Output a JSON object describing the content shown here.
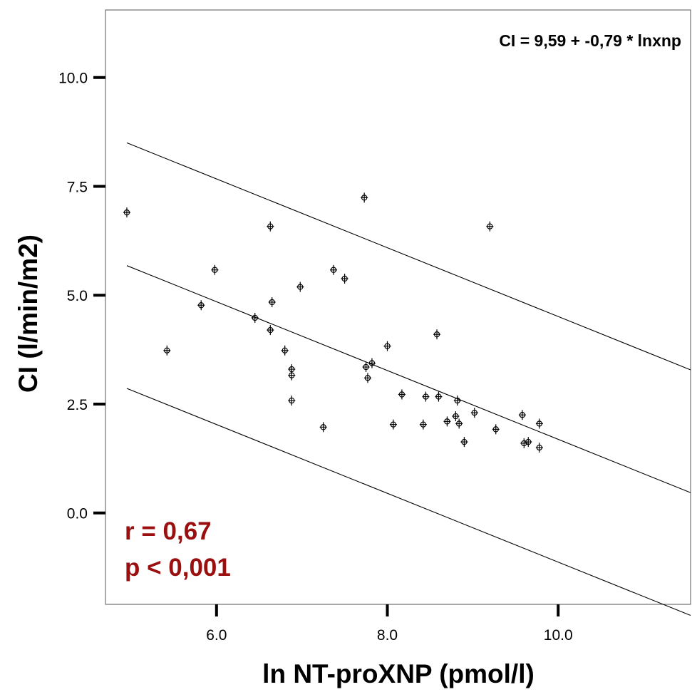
{
  "chart_data": {
    "type": "scatter",
    "title": "",
    "xlabel": "ln NT-proXNP (pmol/l)",
    "ylabel": "CI (l/min/m2)",
    "xlim": [
      4.7,
      11.55
    ],
    "ylim": [
      -2.1,
      11.55
    ],
    "x_ticks": [
      6.0,
      8.0,
      10.0
    ],
    "x_tick_labels": [
      "6.0",
      "8.0",
      "10.0"
    ],
    "y_ticks": [
      0.0,
      2.5,
      5.0,
      7.5,
      10.0
    ],
    "y_tick_labels": [
      "0.0",
      "2.5",
      "5.0",
      "7.5",
      "10.0"
    ],
    "grid": false,
    "annotations": {
      "equation": "CI = 9,59 + -0,79 * lnxnp",
      "r": "r = 0,67",
      "p": "p < 0,001"
    },
    "fit_line": {
      "intercept": 9.59,
      "slope": -0.79,
      "x_range": [
        4.95,
        11.55
      ]
    },
    "prediction_band": {
      "offset": 2.82,
      "x_range": [
        4.95,
        11.55
      ]
    },
    "points": [
      {
        "x": 4.95,
        "y": 6.9
      },
      {
        "x": 5.42,
        "y": 3.73
      },
      {
        "x": 5.82,
        "y": 4.77
      },
      {
        "x": 5.98,
        "y": 5.58
      },
      {
        "x": 6.45,
        "y": 4.48
      },
      {
        "x": 6.63,
        "y": 6.58
      },
      {
        "x": 6.63,
        "y": 4.2
      },
      {
        "x": 6.65,
        "y": 4.84
      },
      {
        "x": 6.8,
        "y": 3.73
      },
      {
        "x": 6.88,
        "y": 3.3
      },
      {
        "x": 6.88,
        "y": 3.16
      },
      {
        "x": 6.88,
        "y": 2.58
      },
      {
        "x": 6.98,
        "y": 5.19
      },
      {
        "x": 7.25,
        "y": 1.97
      },
      {
        "x": 7.37,
        "y": 5.58
      },
      {
        "x": 7.5,
        "y": 5.38
      },
      {
        "x": 7.73,
        "y": 7.24
      },
      {
        "x": 7.75,
        "y": 3.35
      },
      {
        "x": 7.77,
        "y": 3.1
      },
      {
        "x": 7.82,
        "y": 3.44
      },
      {
        "x": 8.0,
        "y": 3.83
      },
      {
        "x": 8.07,
        "y": 2.03
      },
      {
        "x": 8.17,
        "y": 2.72
      },
      {
        "x": 8.42,
        "y": 2.03
      },
      {
        "x": 8.45,
        "y": 2.67
      },
      {
        "x": 8.58,
        "y": 4.1
      },
      {
        "x": 8.6,
        "y": 2.67
      },
      {
        "x": 8.7,
        "y": 2.1
      },
      {
        "x": 8.8,
        "y": 2.22
      },
      {
        "x": 8.82,
        "y": 2.58
      },
      {
        "x": 8.84,
        "y": 2.05
      },
      {
        "x": 8.9,
        "y": 1.63
      },
      {
        "x": 9.02,
        "y": 2.3
      },
      {
        "x": 9.2,
        "y": 6.58
      },
      {
        "x": 9.27,
        "y": 1.92
      },
      {
        "x": 9.58,
        "y": 2.25
      },
      {
        "x": 9.6,
        "y": 1.6
      },
      {
        "x": 9.65,
        "y": 1.63
      },
      {
        "x": 9.78,
        "y": 2.05
      },
      {
        "x": 9.78,
        "y": 1.5
      }
    ]
  }
}
